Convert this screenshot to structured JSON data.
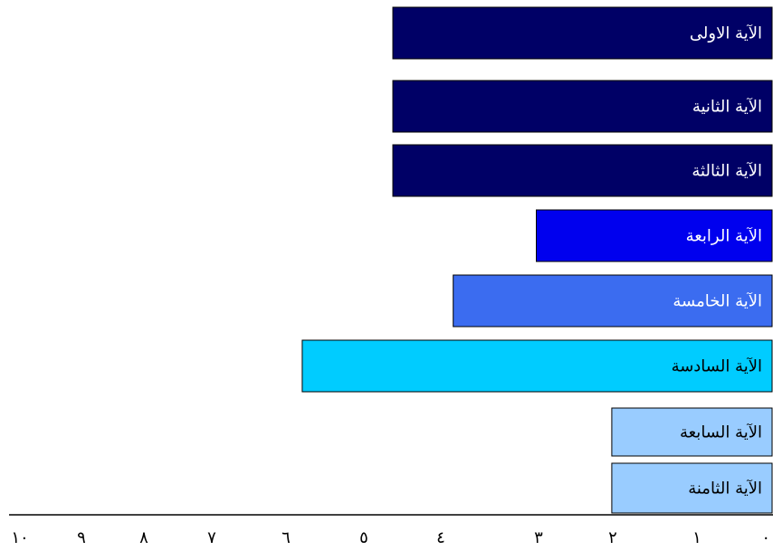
{
  "chart_data": {
    "type": "bar",
    "orientation": "horizontal",
    "x_direction": "right-to-left",
    "categories": [
      "الآية الاولى",
      "الآية الثانية",
      "الآية الثالثة",
      "الآية الرابعة",
      "الآية الخامسة",
      "الآية السادسة",
      "الآية السابعة",
      "الآية الثامنة"
    ],
    "values": [
      5,
      5,
      5,
      3.1,
      4.2,
      6.2,
      2.1,
      2.1
    ],
    "colors": [
      "#000066",
      "#000066",
      "#000066",
      "#0000ee",
      "#3b6cf0",
      "#00ccff",
      "#99ccff",
      "#99ccff"
    ],
    "label_colors": [
      "#ffffff",
      "#ffffff",
      "#ffffff",
      "#ffffff",
      "#ffffff",
      "#000000",
      "#000000",
      "#000000"
    ],
    "xlim": [
      0,
      10
    ],
    "xticks": [
      0,
      1,
      2,
      3,
      4,
      5,
      6,
      7,
      8,
      9,
      10
    ],
    "xtick_labels": [
      "٠",
      "١",
      "٢",
      "٣",
      "٤",
      "٥",
      "٦",
      "٧",
      "٨",
      "٩",
      "١٠"
    ],
    "title": "",
    "xlabel": "",
    "ylabel": "",
    "grid": false,
    "legend": false
  }
}
